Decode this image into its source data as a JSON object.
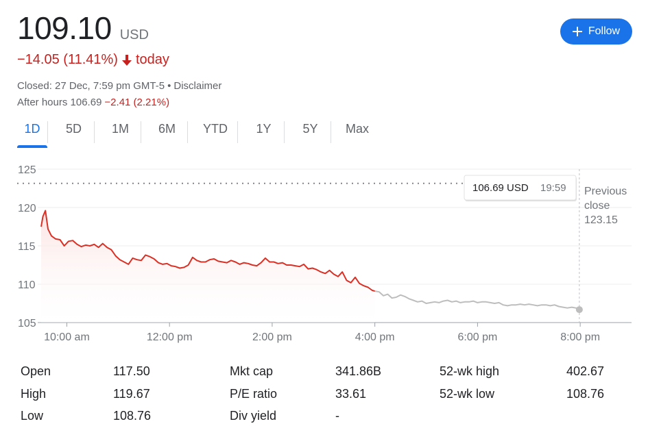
{
  "quote": {
    "price": "109.10",
    "currency": "USD",
    "change": "−14.05 (11.41%)",
    "change_suffix": "today",
    "closed_text": "Closed: 27 Dec, 7:59 pm GMT-5",
    "disclaimer": "Disclaimer",
    "after_hours_label": "After hours 106.69",
    "after_hours_change": "−2.41 (2.21%)",
    "negative_color": "#c5221f",
    "accent_color": "#1a73e8"
  },
  "follow_button": {
    "label": "Follow",
    "icon": "plus-icon"
  },
  "range_tabs": [
    {
      "label": "1D",
      "active": true
    },
    {
      "label": "5D",
      "active": false
    },
    {
      "label": "1M",
      "active": false
    },
    {
      "label": "6M",
      "active": false
    },
    {
      "label": "YTD",
      "active": false
    },
    {
      "label": "1Y",
      "active": false
    },
    {
      "label": "5Y",
      "active": false
    },
    {
      "label": "Max",
      "active": false
    }
  ],
  "chart_data": {
    "type": "line",
    "title": "",
    "xlabel": "",
    "ylabel": "",
    "ylim": [
      105,
      125
    ],
    "yticks": [
      105,
      110,
      115,
      120,
      125
    ],
    "xlim": [
      "9:30",
      "9:00 pm"
    ],
    "xticks": [
      "10:00 am",
      "12:00 pm",
      "2:00 pm",
      "4:00 pm",
      "6:00 pm",
      "8:00 pm"
    ],
    "xtick_minutes": [
      600,
      720,
      840,
      960,
      1080,
      1200
    ],
    "x_range_minutes": [
      570,
      1260
    ],
    "grid": true,
    "previous_close": {
      "value": 123.15,
      "label_lines": [
        "Previous",
        "close",
        "123.15"
      ]
    },
    "tooltip": {
      "value": "106.69 USD",
      "time": "19:59"
    },
    "series": [
      {
        "session": "regular",
        "color": "#d93025",
        "x_minutes": [
          570,
          572,
          575,
          578,
          582,
          587,
          592,
          597,
          602,
          607,
          612,
          617,
          622,
          627,
          632,
          637,
          642,
          647,
          652,
          657,
          662,
          667,
          672,
          677,
          682,
          687,
          692,
          697,
          702,
          707,
          712,
          717,
          722,
          727,
          732,
          737,
          742,
          747,
          752,
          757,
          762,
          767,
          772,
          777,
          782,
          787,
          792,
          797,
          802,
          807,
          812,
          817,
          822,
          827,
          832,
          837,
          842,
          847,
          852,
          857,
          862,
          867,
          872,
          877,
          882,
          887,
          892,
          897,
          902,
          907,
          912,
          917,
          922,
          927,
          932,
          937,
          942,
          947,
          952,
          957,
          960
        ],
        "values": [
          117.5,
          118.8,
          119.6,
          117.2,
          116.3,
          115.9,
          115.8,
          115.0,
          115.6,
          115.7,
          115.2,
          114.9,
          115.1,
          115.0,
          115.2,
          114.8,
          115.3,
          114.8,
          114.5,
          113.7,
          113.2,
          112.9,
          112.6,
          113.4,
          113.2,
          113.1,
          113.8,
          113.6,
          113.3,
          112.8,
          112.6,
          112.7,
          112.4,
          112.3,
          112.1,
          112.2,
          112.5,
          113.5,
          113.1,
          112.9,
          112.9,
          113.2,
          113.3,
          113.0,
          112.9,
          112.8,
          113.1,
          112.9,
          112.6,
          112.8,
          112.7,
          112.5,
          112.4,
          112.8,
          113.4,
          112.9,
          112.9,
          112.7,
          112.8,
          112.5,
          112.5,
          112.4,
          112.3,
          112.6,
          112.0,
          112.1,
          111.9,
          111.6,
          111.4,
          111.8,
          111.3,
          111.0,
          111.6,
          110.5,
          110.2,
          110.9,
          110.1,
          109.8,
          109.6,
          109.2,
          109.1
        ]
      },
      {
        "session": "after_hours",
        "color": "#bdbdbd",
        "x_minutes": [
          960,
          965,
          970,
          975,
          980,
          985,
          990,
          995,
          1000,
          1005,
          1010,
          1015,
          1020,
          1025,
          1030,
          1035,
          1040,
          1045,
          1050,
          1055,
          1060,
          1065,
          1070,
          1075,
          1080,
          1085,
          1090,
          1095,
          1100,
          1105,
          1110,
          1115,
          1120,
          1125,
          1130,
          1135,
          1140,
          1145,
          1150,
          1155,
          1160,
          1165,
          1170,
          1175,
          1180,
          1185,
          1190,
          1195,
          1199
        ],
        "values": [
          109.1,
          109.0,
          108.5,
          108.7,
          108.2,
          108.3,
          108.6,
          108.4,
          108.1,
          107.9,
          107.7,
          107.8,
          107.5,
          107.6,
          107.7,
          107.6,
          107.8,
          107.9,
          107.7,
          107.8,
          107.6,
          107.7,
          107.7,
          107.8,
          107.6,
          107.7,
          107.7,
          107.6,
          107.5,
          107.6,
          107.3,
          107.2,
          107.3,
          107.3,
          107.4,
          107.3,
          107.4,
          107.3,
          107.2,
          107.3,
          107.3,
          107.2,
          107.3,
          107.1,
          107.0,
          106.9,
          107.0,
          106.9,
          106.69
        ]
      }
    ]
  },
  "stats": {
    "col1": [
      {
        "label": "Open",
        "value": "117.50"
      },
      {
        "label": "High",
        "value": "119.67"
      },
      {
        "label": "Low",
        "value": "108.76"
      }
    ],
    "col2": [
      {
        "label": "Mkt cap",
        "value": "341.86B"
      },
      {
        "label": "P/E ratio",
        "value": "33.61"
      },
      {
        "label": "Div yield",
        "value": "-"
      }
    ],
    "col3": [
      {
        "label": "52-wk high",
        "value": "402.67"
      },
      {
        "label": "52-wk low",
        "value": "108.76"
      }
    ]
  }
}
